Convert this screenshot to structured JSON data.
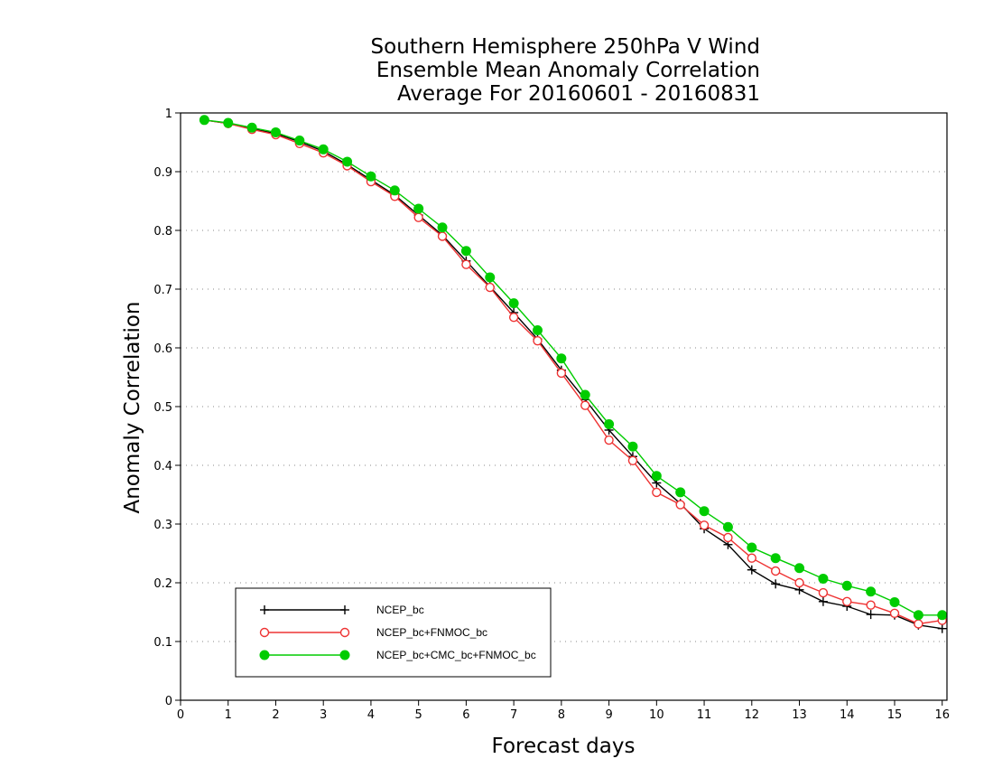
{
  "chart_data": {
    "type": "line",
    "title": [
      "Southern Hemisphere 250hPa V Wind",
      "Ensemble Mean Anomaly Correlation",
      "Average For 20160601 - 20160831"
    ],
    "xlabel": "Forecast days",
    "ylabel": "Anomaly Correlation",
    "xlim": [
      0,
      16.1
    ],
    "ylim": [
      0,
      1
    ],
    "xticks": [
      "0",
      "1",
      "2",
      "3",
      "4",
      "5",
      "6",
      "7",
      "8",
      "9",
      "10",
      "11",
      "12",
      "13",
      "14",
      "15",
      "16"
    ],
    "yticks": [
      "0",
      "0.1",
      "0.2",
      "0.3",
      "0.4",
      "0.5",
      "0.6",
      "0.7",
      "0.8",
      "0.9",
      "1"
    ],
    "grid": "horizontal dotted",
    "legend_position": "bottom-left",
    "x": [
      0.5,
      1,
      1.5,
      2,
      2.5,
      3,
      3.5,
      4,
      4.5,
      5,
      5.5,
      6,
      6.5,
      7,
      7.5,
      8,
      8.5,
      9,
      9.5,
      10,
      10.5,
      11,
      11.5,
      12,
      12.5,
      13,
      13.5,
      14,
      14.5,
      15,
      15.5,
      16
    ],
    "series": [
      {
        "name": "NCEP_bc",
        "color": "#000000",
        "marker": "plus",
        "values": [
          0.988,
          0.982,
          0.973,
          0.965,
          0.951,
          0.935,
          0.912,
          0.886,
          0.86,
          0.826,
          0.792,
          0.748,
          0.704,
          0.66,
          0.615,
          0.562,
          0.512,
          0.46,
          0.415,
          0.37,
          0.335,
          0.292,
          0.265,
          0.222,
          0.198,
          0.188,
          0.168,
          0.16,
          0.146,
          0.145,
          0.128,
          0.122
        ]
      },
      {
        "name": "NCEP_bc+FNMOC_bc",
        "color": "#ee3333",
        "marker": "open-circle",
        "values": [
          0.988,
          0.982,
          0.972,
          0.963,
          0.948,
          0.932,
          0.91,
          0.883,
          0.858,
          0.822,
          0.79,
          0.742,
          0.703,
          0.652,
          0.612,
          0.557,
          0.502,
          0.443,
          0.408,
          0.354,
          0.333,
          0.298,
          0.277,
          0.242,
          0.22,
          0.2,
          0.183,
          0.168,
          0.162,
          0.148,
          0.13,
          0.136
        ]
      },
      {
        "name": "NCEP_bc+CMC_bc+FNMOC_bc",
        "color": "#00cc00",
        "marker": "filled-circle",
        "values": [
          0.988,
          0.983,
          0.975,
          0.967,
          0.953,
          0.938,
          0.917,
          0.892,
          0.868,
          0.837,
          0.805,
          0.765,
          0.72,
          0.676,
          0.63,
          0.582,
          0.52,
          0.47,
          0.432,
          0.382,
          0.354,
          0.322,
          0.295,
          0.26,
          0.242,
          0.225,
          0.207,
          0.195,
          0.185,
          0.167,
          0.145,
          0.145
        ]
      }
    ]
  }
}
